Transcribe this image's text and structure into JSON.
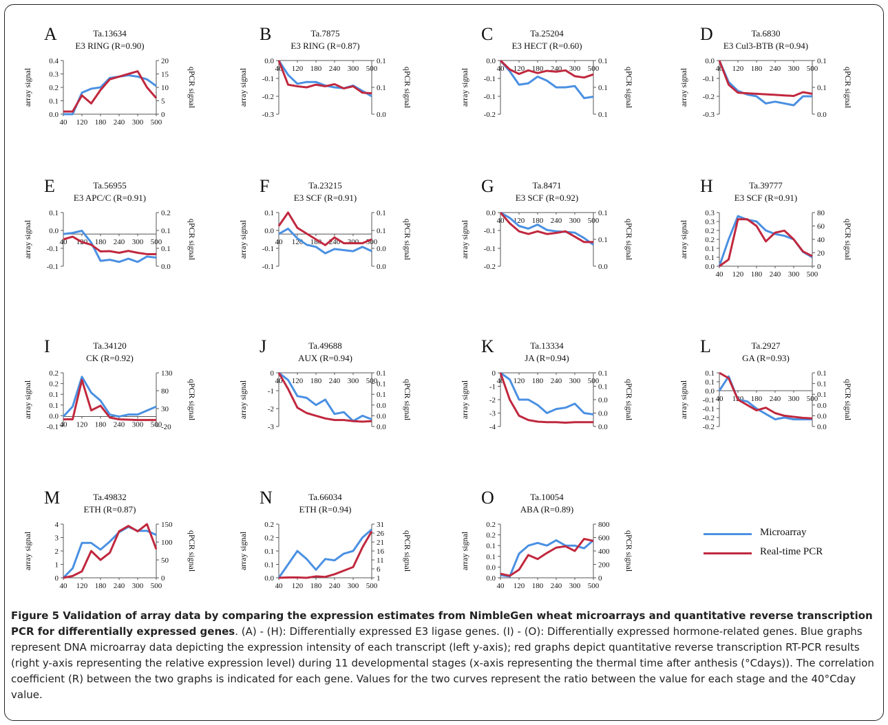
{
  "legend": {
    "items": [
      {
        "label": "Microarray",
        "color": "#4a90e2"
      },
      {
        "label": "Real-time PCR",
        "color": "#c0283e"
      }
    ]
  },
  "caption": {
    "title": "Figure 5 Validation of array data by comparing the expression estimates from NimbleGen wheat microarrays and quantitative reverse transcription PCR for differentially expressed genes",
    "text": ". (A) - (H): Differentially expressed E3 ligase genes. (I) - (O): Differentially expressed hormone-related genes. Blue graphs represent DNA microarray data depicting the expression intensity of each transcript (left y-axis); red graphs depict quantitative reverse transcription RT-PCR results (right y-axis representing the relative expression level) during 11 developmental stages (x-axis representing the thermal time after anthesis (°Cdays)). The correlation coefficient (R) between the two graphs is indicated for each gene. Values for the two curves represent the ratio between the value for each stage and the 40°Cday value."
  },
  "colors": {
    "microarray": "#4a90e2",
    "pcr": "#c0283e",
    "axis": "#555555"
  },
  "chart_data": [
    {
      "letter": "A",
      "gene": "Ta.13634",
      "subtitle": "E3 RING (R=0.90)",
      "type": "line",
      "x_ticks": [
        "40",
        "120",
        "180",
        "240",
        "300",
        "500"
      ],
      "ylabel_left": "array signal",
      "ylabel_right": "qPCR signal",
      "left_ticks": [
        "0.0",
        "0.1",
        "0.2",
        "0.3",
        "0.4"
      ],
      "left_range": [
        0,
        0.4
      ],
      "right_ticks": [
        "0",
        "5",
        "10",
        "15",
        "20"
      ],
      "right_range": [
        0,
        20
      ],
      "microarray": [
        0.0,
        0.0,
        0.16,
        0.19,
        0.2,
        0.27,
        0.28,
        0.29,
        0.28,
        0.26,
        0.21
      ],
      "pcr": [
        1.0,
        1.0,
        7.0,
        4.0,
        9.0,
        13.0,
        14.0,
        15.0,
        16.0,
        10.0,
        6.0
      ]
    },
    {
      "letter": "B",
      "gene": "Ta.7875",
      "subtitle": "E3 RING (R=0.87)",
      "type": "line",
      "x_ticks": [
        "40",
        "120",
        "180",
        "240",
        "300",
        "500"
      ],
      "ylabel_left": "array signal",
      "ylabel_right": "qPCR signal",
      "left_ticks": [
        "0.0",
        "-0.1",
        "-0.2",
        "-0.3"
      ],
      "left_range": [
        -0.3,
        0.0
      ],
      "right_ticks": [
        "0.1",
        "0.1",
        "0.0"
      ],
      "right_range": [
        0.0,
        0.1
      ],
      "microarray": [
        0.0,
        -0.08,
        -0.13,
        -0.12,
        -0.12,
        -0.14,
        -0.15,
        -0.155,
        -0.14,
        -0.17,
        -0.2
      ],
      "pcr": [
        0.1,
        0.055,
        0.052,
        0.05,
        0.055,
        0.052,
        0.056,
        0.048,
        0.052,
        0.04,
        0.039
      ]
    },
    {
      "letter": "C",
      "gene": "Ta.25204",
      "subtitle": "E3 HECT (R=0.60)",
      "type": "line",
      "x_ticks": [
        "40",
        "120",
        "180",
        "240",
        "300",
        "500"
      ],
      "ylabel_left": "array signal",
      "ylabel_right": "qPCR signal",
      "left_ticks": [
        "0.0",
        "-0.1",
        "-0.1",
        "-0.2"
      ],
      "left_range": [
        -0.2,
        0.0
      ],
      "right_ticks": [
        "0.1",
        "0.1",
        "0.1"
      ],
      "right_range": [
        0.0,
        0.12
      ],
      "microarray": [
        0.0,
        -0.04,
        -0.09,
        -0.085,
        -0.06,
        -0.075,
        -0.1,
        -0.1,
        -0.095,
        -0.14,
        -0.135
      ],
      "pcr": [
        0.12,
        0.1,
        0.09,
        0.098,
        0.092,
        0.097,
        0.095,
        0.098,
        0.085,
        0.082,
        0.089
      ]
    },
    {
      "letter": "D",
      "gene": "Ta.6830",
      "subtitle": "E3 Cul3-BTB (R=0.94)",
      "type": "line",
      "x_ticks": [
        "40",
        "120",
        "180",
        "240",
        "300",
        "500"
      ],
      "ylabel_left": "array signal",
      "ylabel_right": "qPCR signal",
      "left_ticks": [
        "0.0",
        "-0.1",
        "-0.2",
        "-0.3"
      ],
      "left_range": [
        -0.3,
        0.0
      ],
      "right_ticks": [
        "0.1",
        "0.1",
        "0.0"
      ],
      "right_range": [
        0.0,
        0.1
      ],
      "microarray": [
        0.0,
        -0.12,
        -0.17,
        -0.19,
        -0.2,
        -0.24,
        -0.23,
        -0.24,
        -0.25,
        -0.2,
        -0.2
      ],
      "pcr": [
        0.1,
        0.055,
        0.04,
        0.039,
        0.038,
        0.037,
        0.036,
        0.035,
        0.034,
        0.041,
        0.038
      ]
    },
    {
      "letter": "E",
      "gene": "Ta.56955",
      "subtitle": "E3 APC/C (R=0.91)",
      "type": "line",
      "x_ticks": [
        "40",
        "120",
        "180",
        "240",
        "300",
        "500"
      ],
      "ylabel_left": "array signal",
      "ylabel_right": "qPCR signal",
      "left_ticks": [
        "0.1",
        "0.0",
        "-0.1",
        "-0.1"
      ],
      "left_range": [
        -0.15,
        0.1
      ],
      "right_ticks": [
        "0.2",
        "0.1",
        "0.1",
        "0.0"
      ],
      "right_range": [
        0.0,
        0.2
      ],
      "microarray": [
        0.0,
        0.005,
        0.015,
        -0.04,
        -0.125,
        -0.12,
        -0.13,
        -0.115,
        -0.13,
        -0.105,
        -0.11
      ],
      "pcr": [
        0.1,
        0.11,
        0.09,
        0.08,
        0.055,
        0.056,
        0.05,
        0.057,
        0.05,
        0.045,
        0.045
      ]
    },
    {
      "letter": "F",
      "gene": "Ta.23215",
      "subtitle": "E3 SCF (R=0.91)",
      "type": "line",
      "x_ticks": [
        "40",
        "120",
        "180",
        "240",
        "300",
        "500"
      ],
      "ylabel_left": "array signal",
      "ylabel_right": "qPCR signal",
      "left_ticks": [
        "0.1",
        "0.0",
        "-0.1",
        "-0.1"
      ],
      "left_range": [
        -0.15,
        0.1
      ],
      "right_ticks": [
        "0.1",
        "0.1",
        "0.0",
        "0.0"
      ],
      "right_range": [
        -0.02,
        0.12
      ],
      "microarray": [
        0.0,
        0.025,
        -0.02,
        -0.05,
        -0.06,
        -0.09,
        -0.07,
        -0.075,
        -0.08,
        -0.06,
        -0.08
      ],
      "pcr": [
        0.085,
        0.12,
        0.08,
        0.065,
        0.05,
        0.035,
        0.055,
        0.04,
        0.04,
        0.04,
        0.05
      ]
    },
    {
      "letter": "G",
      "gene": "Ta.8471",
      "subtitle": "E3 SCF (R=0.92)",
      "type": "line",
      "x_ticks": [
        "40",
        "120",
        "180",
        "240",
        "300",
        "500"
      ],
      "ylabel_left": "array signal",
      "ylabel_right": "qPCR signal",
      "left_ticks": [
        "0.0",
        "-0.1",
        "-0.1",
        "-0.2"
      ],
      "left_range": [
        -0.2,
        0.0
      ],
      "right_ticks": [
        "0.1",
        "0.1",
        "0.0"
      ],
      "right_range": [
        0.0,
        0.1
      ],
      "microarray": [
        0.0,
        -0.02,
        -0.05,
        -0.06,
        -0.045,
        -0.065,
        -0.07,
        -0.072,
        -0.075,
        -0.095,
        -0.12
      ],
      "pcr": [
        0.1,
        0.08,
        0.065,
        0.06,
        0.065,
        0.06,
        0.062,
        0.065,
        0.055,
        0.045,
        0.045
      ]
    },
    {
      "letter": "H",
      "gene": "Ta.39777",
      "subtitle": "E3 SCF (R=0.91)",
      "type": "line",
      "x_ticks": [
        "40",
        "120",
        "180",
        "240",
        "300",
        "500"
      ],
      "ylabel_left": "array signal",
      "ylabel_right": "qPCR signal",
      "left_ticks": [
        "0.0",
        "0.1",
        "0.1",
        "0.2",
        "0.2",
        "0.3",
        "0.3"
      ],
      "left_range": [
        0,
        0.3
      ],
      "right_ticks": [
        "0",
        "20",
        "40",
        "60",
        "80"
      ],
      "right_range": [
        0,
        80
      ],
      "microarray": [
        0.0,
        0.15,
        0.28,
        0.26,
        0.25,
        0.2,
        0.18,
        0.17,
        0.15,
        0.08,
        0.05
      ],
      "pcr": [
        0.0,
        10.0,
        70.0,
        70.0,
        60.0,
        37.0,
        50.0,
        53.0,
        40.0,
        22.0,
        15.0
      ]
    },
    {
      "letter": "I",
      "gene": "Ta.34120",
      "subtitle": "CK (R=0.92)",
      "type": "line",
      "x_ticks": [
        "40",
        "120",
        "180",
        "240",
        "300",
        "500"
      ],
      "ylabel_left": "array signal",
      "ylabel_right": "qPCR signal",
      "left_ticks": [
        "0.2",
        "0.2",
        "0.1",
        "0.1",
        "0.0",
        "-0.1"
      ],
      "left_range": [
        -0.05,
        0.22
      ],
      "right_ticks": [
        "130",
        "80",
        "30",
        "-20"
      ],
      "right_range": [
        -20,
        130
      ],
      "microarray": [
        0.0,
        0.05,
        0.2,
        0.12,
        0.08,
        0.01,
        0.0,
        0.01,
        0.01,
        0.03,
        0.05
      ],
      "pcr": [
        0.0,
        0.0,
        110.0,
        25.0,
        38.0,
        5.0,
        0.0,
        -1.0,
        -2.0,
        -2.0,
        -2.0
      ]
    },
    {
      "letter": "J",
      "gene": "Ta.49688",
      "subtitle": "AUX (R=0.94)",
      "type": "line",
      "x_ticks": [
        "40",
        "120",
        "180",
        "240",
        "300",
        "500"
      ],
      "ylabel_left": "array signal",
      "ylabel_right": "qPCR signal",
      "left_ticks": [
        "0",
        "-1",
        "-2",
        "-3"
      ],
      "left_range": [
        -3,
        0
      ],
      "right_ticks": [
        "0.1",
        "0.1",
        "0.1",
        "0.0",
        "0.0",
        "0.0"
      ],
      "right_range": [
        0.0,
        0.1
      ],
      "microarray": [
        0.0,
        -0.4,
        -1.3,
        -1.4,
        -1.8,
        -1.5,
        -2.3,
        -2.2,
        -2.7,
        -2.4,
        -2.6
      ],
      "pcr": [
        0.1,
        0.07,
        0.035,
        0.025,
        0.02,
        0.015,
        0.012,
        0.012,
        0.01,
        0.009,
        0.01
      ]
    },
    {
      "letter": "K",
      "gene": "Ta.13334",
      "subtitle": "JA (R=0.94)",
      "type": "line",
      "x_ticks": [
        "40",
        "120",
        "180",
        "240",
        "300",
        "500"
      ],
      "ylabel_left": "array signal",
      "ylabel_right": "qPCR signal",
      "left_ticks": [
        "0",
        "-1",
        "-2",
        "-3",
        "-4"
      ],
      "left_range": [
        -4,
        0
      ],
      "right_ticks": [
        "0.1",
        "0.1",
        "0.0",
        "0.0",
        "0.0"
      ],
      "right_range": [
        0.0,
        0.1
      ],
      "microarray": [
        0.0,
        -0.5,
        -2.0,
        -2.0,
        -2.4,
        -3.0,
        -2.7,
        -2.6,
        -2.3,
        -3.0,
        -3.1
      ],
      "pcr": [
        0.1,
        0.05,
        0.02,
        0.012,
        0.009,
        0.008,
        0.008,
        0.007,
        0.008,
        0.008,
        0.008
      ]
    },
    {
      "letter": "L",
      "gene": "Ta.2927",
      "subtitle": "GA (R=0.93)",
      "type": "line",
      "x_ticks": [
        "40",
        "120",
        "180",
        "240",
        "300",
        "500"
      ],
      "ylabel_left": "array signal",
      "ylabel_right": "qPCR signal",
      "left_ticks": [
        "0.1",
        "0.1",
        "0.0",
        "-0.1",
        "-0.1",
        "-0.2",
        "-0.2"
      ],
      "left_range": [
        -0.2,
        0.1
      ],
      "right_ticks": [
        "0.1",
        "0.1",
        "0.1",
        "0.0",
        "0.0",
        "0.0"
      ],
      "right_range": [
        0.0,
        0.1
      ],
      "microarray": [
        0.0,
        0.08,
        -0.05,
        -0.06,
        -0.1,
        -0.13,
        -0.16,
        -0.15,
        -0.16,
        -0.16,
        -0.16
      ],
      "pcr": [
        0.1,
        0.09,
        0.05,
        0.04,
        0.03,
        0.035,
        0.025,
        0.02,
        0.018,
        0.016,
        0.015
      ]
    },
    {
      "letter": "M",
      "gene": "Ta.49832",
      "subtitle": "ETH (R=0.87)",
      "type": "line",
      "x_ticks": [
        "40",
        "120",
        "180",
        "240",
        "300",
        "500"
      ],
      "ylabel_left": "array signal",
      "ylabel_right": "qPCR signal",
      "left_ticks": [
        "0",
        "1",
        "2",
        "3",
        "4"
      ],
      "left_range": [
        0,
        4
      ],
      "right_ticks": [
        "0",
        "50",
        "100",
        "150"
      ],
      "right_range": [
        0,
        150
      ],
      "microarray": [
        0.0,
        0.7,
        2.6,
        2.6,
        2.1,
        2.7,
        3.4,
        3.8,
        3.5,
        3.5,
        3.2
      ],
      "pcr": [
        0.0,
        5.0,
        18.0,
        75.0,
        50.0,
        70.0,
        130.0,
        145.0,
        130.0,
        150.0,
        80.0
      ]
    },
    {
      "letter": "N",
      "gene": "Ta.66034",
      "subtitle": "ETH (R=0.94)",
      "type": "line",
      "x_ticks": [
        "40",
        "120",
        "180",
        "240",
        "300",
        "500"
      ],
      "ylabel_left": "array signal",
      "ylabel_right": "qPCR signal",
      "left_ticks": [
        "0.0",
        "0.1",
        "0.1",
        "0.2",
        "0.2"
      ],
      "left_range": [
        0,
        0.2
      ],
      "right_ticks": [
        "1",
        "6",
        "11",
        "16",
        "21",
        "26",
        "31"
      ],
      "right_range": [
        1,
        31
      ],
      "microarray": [
        0.0,
        0.05,
        0.1,
        0.07,
        0.03,
        0.07,
        0.065,
        0.09,
        0.1,
        0.15,
        0.18
      ],
      "pcr": [
        1.0,
        1.2,
        1.2,
        1.0,
        1.8,
        1.5,
        3.0,
        5.0,
        7.0,
        18.0,
        27.0
      ]
    },
    {
      "letter": "O",
      "gene": "Ta.10054",
      "subtitle": "ABA (R=0.89)",
      "type": "line",
      "x_ticks": [
        "40",
        "120",
        "180",
        "240",
        "300",
        "500"
      ],
      "ylabel_left": "array signal",
      "ylabel_right": "qPCR signal",
      "left_ticks": [
        "0.0",
        "0.0",
        "0.1",
        "0.1",
        "0.2",
        "0.2"
      ],
      "left_range": [
        0,
        0.2
      ],
      "right_ticks": [
        "0",
        "200",
        "400",
        "600",
        "800"
      ],
      "right_range": [
        0,
        800
      ],
      "microarray": [
        0.01,
        0.005,
        0.09,
        0.12,
        0.13,
        0.12,
        0.14,
        0.12,
        0.12,
        0.11,
        0.14
      ],
      "pcr": [
        60.0,
        30.0,
        120.0,
        340.0,
        280.0,
        370.0,
        450.0,
        470.0,
        400.0,
        580.0,
        550.0
      ]
    }
  ]
}
